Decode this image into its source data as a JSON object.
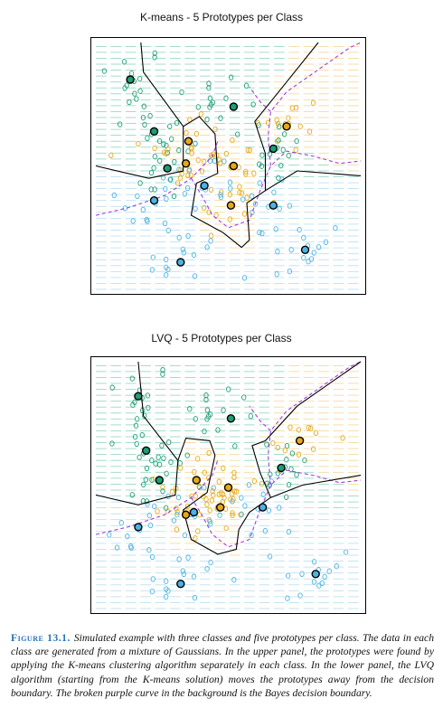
{
  "colors": {
    "green": "#1c9e77",
    "orange": "#e6a817",
    "blue": "#4ab3e2",
    "green_bg": "#8fd3bd",
    "orange_bg": "#f3d594",
    "blue_bg": "#b5dcf0",
    "bayes_boundary": "#a23dd8",
    "prototype_edge": "#000000"
  },
  "caption": {
    "label": "Figure 13.1.",
    "text": "Simulated example with three classes and five prototypes per class. The data in each class are generated from a mixture of Gaussians. In the upper panel, the prototypes were found by applying the K-means clustering algorithm separately in each class. In the lower panel, the LVQ algorithm (starting from the K-means solution) moves the prototypes away from the decision boundary. The broken purple curve in the background is the Bayes decision boundary."
  },
  "chart_data": [
    {
      "type": "scatter",
      "title": "K-means - 5 Prototypes per Class",
      "xlabel": "",
      "ylabel": "",
      "xlim": [
        0,
        100
      ],
      "ylim": [
        0,
        100
      ],
      "classes": [
        "green",
        "orange",
        "blue"
      ],
      "prototypes": [
        {
          "class": "green",
          "x": 13,
          "y": 85
        },
        {
          "class": "green",
          "x": 22,
          "y": 64
        },
        {
          "class": "green",
          "x": 27,
          "y": 49
        },
        {
          "class": "green",
          "x": 52,
          "y": 74
        },
        {
          "class": "green",
          "x": 67,
          "y": 57
        },
        {
          "class": "orange",
          "x": 35,
          "y": 60
        },
        {
          "class": "orange",
          "x": 34,
          "y": 51
        },
        {
          "class": "orange",
          "x": 52,
          "y": 50
        },
        {
          "class": "orange",
          "x": 51,
          "y": 34
        },
        {
          "class": "orange",
          "x": 72,
          "y": 66
        },
        {
          "class": "blue",
          "x": 22,
          "y": 36
        },
        {
          "class": "blue",
          "x": 41,
          "y": 42
        },
        {
          "class": "blue",
          "x": 67,
          "y": 34
        },
        {
          "class": "blue",
          "x": 79,
          "y": 16
        },
        {
          "class": "blue",
          "x": 32,
          "y": 11
        }
      ],
      "decision_boundary": [
        [
          [
            0,
            50
          ],
          [
            20,
            45
          ],
          [
            33,
            48
          ],
          [
            33,
            66
          ],
          [
            39,
            70
          ],
          [
            45,
            63
          ],
          [
            46,
            47
          ],
          [
            38,
            43
          ],
          [
            36,
            30
          ],
          [
            48,
            23
          ],
          [
            55,
            17
          ],
          [
            58,
            20
          ],
          [
            57,
            35
          ],
          [
            64,
            40
          ],
          [
            76,
            48
          ],
          [
            100,
            46
          ]
        ],
        [
          [
            33,
            66
          ],
          [
            18,
            88
          ],
          [
            17,
            100
          ]
        ],
        [
          [
            64,
            40
          ],
          [
            64,
            55
          ],
          [
            60,
            68
          ],
          [
            72,
            84
          ],
          [
            84,
            100
          ]
        ]
      ],
      "bayes_boundary": [
        [
          [
            0,
            30
          ],
          [
            12,
            33
          ],
          [
            26,
            38
          ],
          [
            36,
            45
          ],
          [
            44,
            54
          ],
          [
            46,
            60
          ]
        ],
        [
          [
            36,
            45
          ],
          [
            40,
            38
          ],
          [
            44,
            30
          ],
          [
            50,
            25
          ],
          [
            58,
            28
          ],
          [
            62,
            40
          ],
          [
            66,
            50
          ],
          [
            72,
            56
          ],
          [
            82,
            54
          ],
          [
            92,
            51
          ],
          [
            100,
            52
          ]
        ],
        [
          [
            66,
            50
          ],
          [
            65,
            62
          ],
          [
            66,
            72
          ],
          [
            72,
            80
          ],
          [
            80,
            86
          ],
          [
            88,
            92
          ],
          [
            96,
            98
          ],
          [
            100,
            100
          ]
        ],
        [
          [
            66,
            72
          ],
          [
            62,
            76
          ],
          [
            58,
            82
          ]
        ]
      ]
    },
    {
      "type": "scatter",
      "title": "LVQ - 5 Prototypes per Class",
      "xlabel": "",
      "ylabel": "",
      "xlim": [
        0,
        100
      ],
      "ylim": [
        0,
        100
      ],
      "classes": [
        "green",
        "orange",
        "blue"
      ],
      "prototypes": [
        {
          "class": "green",
          "x": 16,
          "y": 86
        },
        {
          "class": "green",
          "x": 19,
          "y": 64
        },
        {
          "class": "green",
          "x": 24,
          "y": 52
        },
        {
          "class": "green",
          "x": 51,
          "y": 77
        },
        {
          "class": "green",
          "x": 70,
          "y": 57
        },
        {
          "class": "orange",
          "x": 38,
          "y": 52
        },
        {
          "class": "orange",
          "x": 50,
          "y": 49
        },
        {
          "class": "orange",
          "x": 47,
          "y": 41
        },
        {
          "class": "orange",
          "x": 77,
          "y": 68
        },
        {
          "class": "orange",
          "x": 34,
          "y": 38
        },
        {
          "class": "blue",
          "x": 16,
          "y": 33
        },
        {
          "class": "blue",
          "x": 37,
          "y": 39
        },
        {
          "class": "blue",
          "x": 63,
          "y": 41
        },
        {
          "class": "blue",
          "x": 83,
          "y": 14
        },
        {
          "class": "blue",
          "x": 32,
          "y": 10
        }
      ],
      "decision_boundary": [
        [
          [
            0,
            46
          ],
          [
            16,
            42
          ],
          [
            30,
            46
          ],
          [
            31,
            60
          ],
          [
            34,
            69
          ],
          [
            43,
            68
          ],
          [
            45,
            62
          ],
          [
            42,
            47
          ],
          [
            33,
            40
          ],
          [
            36,
            28
          ],
          [
            46,
            22
          ],
          [
            53,
            24
          ],
          [
            54,
            32
          ],
          [
            58,
            39
          ],
          [
            66,
            45
          ],
          [
            78,
            50
          ],
          [
            100,
            54
          ]
        ],
        [
          [
            31,
            60
          ],
          [
            18,
            78
          ],
          [
            16,
            100
          ]
        ],
        [
          [
            66,
            45
          ],
          [
            62,
            55
          ],
          [
            59,
            66
          ],
          [
            64,
            68
          ],
          [
            76,
            82
          ],
          [
            100,
            100
          ]
        ]
      ],
      "bayes_boundary": [
        [
          [
            0,
            30
          ],
          [
            12,
            33
          ],
          [
            26,
            38
          ],
          [
            36,
            45
          ],
          [
            44,
            54
          ],
          [
            46,
            60
          ]
        ],
        [
          [
            36,
            45
          ],
          [
            40,
            38
          ],
          [
            44,
            30
          ],
          [
            50,
            25
          ],
          [
            58,
            28
          ],
          [
            62,
            40
          ],
          [
            66,
            50
          ],
          [
            72,
            56
          ],
          [
            82,
            54
          ],
          [
            92,
            51
          ],
          [
            100,
            52
          ]
        ],
        [
          [
            66,
            50
          ],
          [
            65,
            62
          ],
          [
            66,
            72
          ],
          [
            72,
            80
          ],
          [
            80,
            86
          ],
          [
            88,
            92
          ],
          [
            96,
            98
          ],
          [
            100,
            100
          ]
        ],
        [
          [
            66,
            72
          ],
          [
            62,
            76
          ],
          [
            58,
            82
          ]
        ]
      ]
    }
  ]
}
